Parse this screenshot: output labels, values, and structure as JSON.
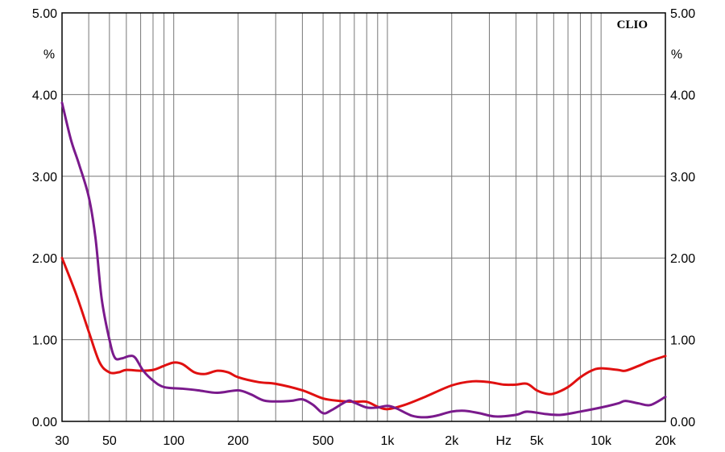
{
  "chart_data": {
    "type": "line",
    "title": "",
    "brand": "CLIO",
    "xscale": "log",
    "xlim": [
      30,
      20000
    ],
    "ylim": [
      0,
      5
    ],
    "grid": true,
    "y_unit": "%",
    "x_unit": "Hz",
    "y_ticks": [
      "0.00",
      "1.00",
      "2.00",
      "3.00",
      "4.00",
      "5.00"
    ],
    "x_tick_labels": [
      {
        "value": 30,
        "label": "30"
      },
      {
        "value": 50,
        "label": "50"
      },
      {
        "value": 100,
        "label": "100"
      },
      {
        "value": 200,
        "label": "200"
      },
      {
        "value": 500,
        "label": "500"
      },
      {
        "value": 1000,
        "label": "1k"
      },
      {
        "value": 2000,
        "label": "2k"
      },
      {
        "value": 5000,
        "label": "5k"
      },
      {
        "value": 10000,
        "label": "10k"
      },
      {
        "value": 20000,
        "label": "20k"
      }
    ],
    "x_gridlines": [
      30,
      40,
      50,
      60,
      70,
      80,
      90,
      100,
      200,
      300,
      400,
      500,
      600,
      700,
      800,
      900,
      1000,
      2000,
      3000,
      4000,
      5000,
      6000,
      7000,
      8000,
      9000,
      10000,
      20000
    ],
    "series": [
      {
        "color": "#e01010",
        "points": [
          [
            30,
            2.0
          ],
          [
            35,
            1.55
          ],
          [
            40,
            1.1
          ],
          [
            45,
            0.72
          ],
          [
            50,
            0.6
          ],
          [
            55,
            0.6
          ],
          [
            60,
            0.63
          ],
          [
            70,
            0.62
          ],
          [
            80,
            0.63
          ],
          [
            90,
            0.68
          ],
          [
            100,
            0.72
          ],
          [
            110,
            0.7
          ],
          [
            125,
            0.6
          ],
          [
            140,
            0.58
          ],
          [
            160,
            0.62
          ],
          [
            180,
            0.6
          ],
          [
            200,
            0.54
          ],
          [
            250,
            0.48
          ],
          [
            300,
            0.46
          ],
          [
            400,
            0.38
          ],
          [
            500,
            0.28
          ],
          [
            600,
            0.25
          ],
          [
            700,
            0.24
          ],
          [
            800,
            0.24
          ],
          [
            900,
            0.18
          ],
          [
            1000,
            0.15
          ],
          [
            1200,
            0.2
          ],
          [
            1500,
            0.3
          ],
          [
            2000,
            0.44
          ],
          [
            2500,
            0.49
          ],
          [
            3000,
            0.48
          ],
          [
            3500,
            0.45
          ],
          [
            4000,
            0.45
          ],
          [
            4500,
            0.46
          ],
          [
            5000,
            0.38
          ],
          [
            5500,
            0.34
          ],
          [
            6000,
            0.34
          ],
          [
            7000,
            0.42
          ],
          [
            8000,
            0.54
          ],
          [
            9000,
            0.62
          ],
          [
            10000,
            0.65
          ],
          [
            12000,
            0.63
          ],
          [
            13000,
            0.62
          ],
          [
            15000,
            0.68
          ],
          [
            17000,
            0.74
          ],
          [
            20000,
            0.8
          ]
        ]
      },
      {
        "color": "#7a1a8c",
        "points": [
          [
            30,
            3.9
          ],
          [
            33,
            3.45
          ],
          [
            36,
            3.15
          ],
          [
            40,
            2.75
          ],
          [
            43,
            2.25
          ],
          [
            46,
            1.5
          ],
          [
            50,
            1.0
          ],
          [
            53,
            0.78
          ],
          [
            57,
            0.77
          ],
          [
            62,
            0.8
          ],
          [
            66,
            0.78
          ],
          [
            72,
            0.62
          ],
          [
            80,
            0.5
          ],
          [
            90,
            0.42
          ],
          [
            110,
            0.4
          ],
          [
            130,
            0.38
          ],
          [
            160,
            0.35
          ],
          [
            200,
            0.38
          ],
          [
            230,
            0.33
          ],
          [
            270,
            0.25
          ],
          [
            350,
            0.25
          ],
          [
            400,
            0.27
          ],
          [
            450,
            0.2
          ],
          [
            500,
            0.1
          ],
          [
            550,
            0.14
          ],
          [
            650,
            0.25
          ],
          [
            700,
            0.23
          ],
          [
            800,
            0.17
          ],
          [
            900,
            0.17
          ],
          [
            1000,
            0.19
          ],
          [
            1100,
            0.16
          ],
          [
            1300,
            0.07
          ],
          [
            1500,
            0.05
          ],
          [
            1700,
            0.07
          ],
          [
            2000,
            0.12
          ],
          [
            2300,
            0.13
          ],
          [
            2700,
            0.1
          ],
          [
            3200,
            0.06
          ],
          [
            4000,
            0.08
          ],
          [
            4500,
            0.12
          ],
          [
            5500,
            0.09
          ],
          [
            6500,
            0.08
          ],
          [
            8000,
            0.12
          ],
          [
            10000,
            0.17
          ],
          [
            12000,
            0.22
          ],
          [
            13000,
            0.25
          ],
          [
            15000,
            0.22
          ],
          [
            17000,
            0.2
          ],
          [
            20000,
            0.3
          ]
        ]
      }
    ]
  }
}
